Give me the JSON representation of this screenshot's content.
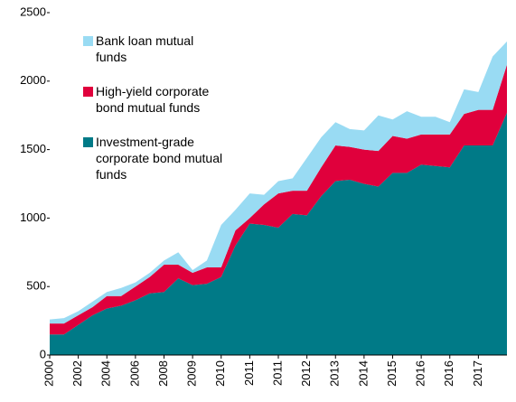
{
  "chart_data": {
    "type": "stacked_area",
    "categories": [
      "2000",
      null,
      "2002",
      null,
      "2004",
      null,
      "2006",
      null,
      "2008",
      null,
      "2009",
      null,
      "2010",
      null,
      "2011",
      null,
      "2011",
      null,
      "2012",
      null,
      "2013",
      null,
      "2014",
      null,
      "2015",
      null,
      "2016",
      null,
      "2016",
      null,
      "2017",
      null,
      null
    ],
    "series": [
      {
        "name": "Investment-grade corporate bond mutual funds",
        "color": "#007a87",
        "values": [
          150,
          150,
          220,
          290,
          340,
          360,
          400,
          450,
          460,
          560,
          510,
          520,
          570,
          800,
          960,
          950,
          930,
          1030,
          1020,
          1160,
          1270,
          1280,
          1250,
          1230,
          1330,
          1330,
          1390,
          1380,
          1370,
          1530,
          1530,
          1530,
          1770
        ]
      },
      {
        "name": "High-yield corporate bond mutual funds",
        "color": "#e0003c",
        "values": [
          80,
          80,
          70,
          60,
          90,
          70,
          100,
          120,
          200,
          100,
          90,
          120,
          70,
          110,
          40,
          150,
          250,
          170,
          180,
          210,
          260,
          240,
          250,
          260,
          270,
          250,
          220,
          230,
          240,
          230,
          260,
          260,
          350
        ]
      },
      {
        "name": "Bank loan mutual funds",
        "color": "#99dbf3",
        "values": [
          30,
          40,
          30,
          40,
          30,
          60,
          30,
          30,
          30,
          90,
          20,
          50,
          310,
          150,
          180,
          70,
          90,
          90,
          240,
          220,
          170,
          130,
          140,
          260,
          120,
          200,
          130,
          130,
          90,
          180,
          130,
          390,
          170
        ]
      }
    ],
    "ylim": [
      0,
      2500
    ],
    "yticks": [
      0,
      500,
      1000,
      1500,
      2000,
      2500
    ],
    "legend": "upper left",
    "grid": false
  }
}
